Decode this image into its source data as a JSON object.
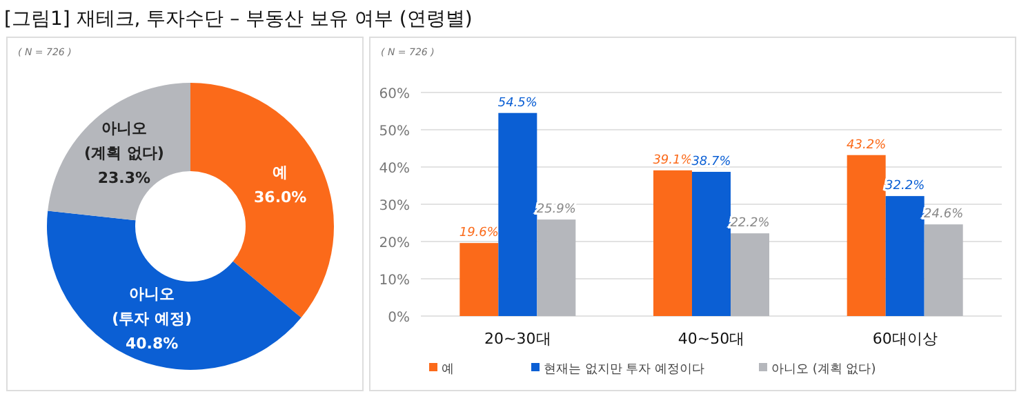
{
  "chart_data": [
    {
      "type": "donut",
      "title": "[그림1] 재테크, 투자수단 – 부동산 보유 여부 (연령별)",
      "subtitle": "( N = 726 )",
      "categories": [
        "예",
        "아니오 (투자 예정)",
        "아니오 (계획 없다)"
      ],
      "values": [
        36.0,
        40.8,
        23.3
      ],
      "value_labels": [
        "36.0%",
        "40.8%",
        "23.3%"
      ],
      "colors": [
        "#fb6a1a",
        "#0b5fd4",
        "#b5b7bc"
      ]
    },
    {
      "type": "bar",
      "subtitle": "( N = 726 )",
      "categories": [
        "20~30대",
        "40~50대",
        "60대이상"
      ],
      "series": [
        {
          "name": "예",
          "color": "#fb6a1a",
          "values": [
            19.6,
            39.1,
            43.2
          ],
          "value_labels": [
            "19.6%",
            "39.1%",
            "43.2%"
          ]
        },
        {
          "name": "현재는 없지만 투자 예정이다",
          "color": "#0b5fd4",
          "values": [
            54.5,
            38.7,
            32.2
          ],
          "value_labels": [
            "54.5%",
            "38.7%",
            "32.2%"
          ]
        },
        {
          "name": "아니오 (계획 없다)",
          "color": "#b5b7bc",
          "values": [
            25.9,
            22.2,
            24.6
          ],
          "value_labels": [
            "25.9%",
            "22.2%",
            "24.6%"
          ]
        }
      ],
      "ylim": [
        0,
        60
      ],
      "yticks": [
        {
          "value": 0,
          "label": "0%"
        },
        {
          "value": 10,
          "label": "10%"
        },
        {
          "value": 20,
          "label": "20%"
        },
        {
          "value": 30,
          "label": "30%"
        },
        {
          "value": 40,
          "label": "40%"
        },
        {
          "value": 50,
          "label": "50%"
        },
        {
          "value": 60,
          "label": "60%"
        }
      ],
      "grid": "y",
      "legend": "bottom"
    }
  ]
}
